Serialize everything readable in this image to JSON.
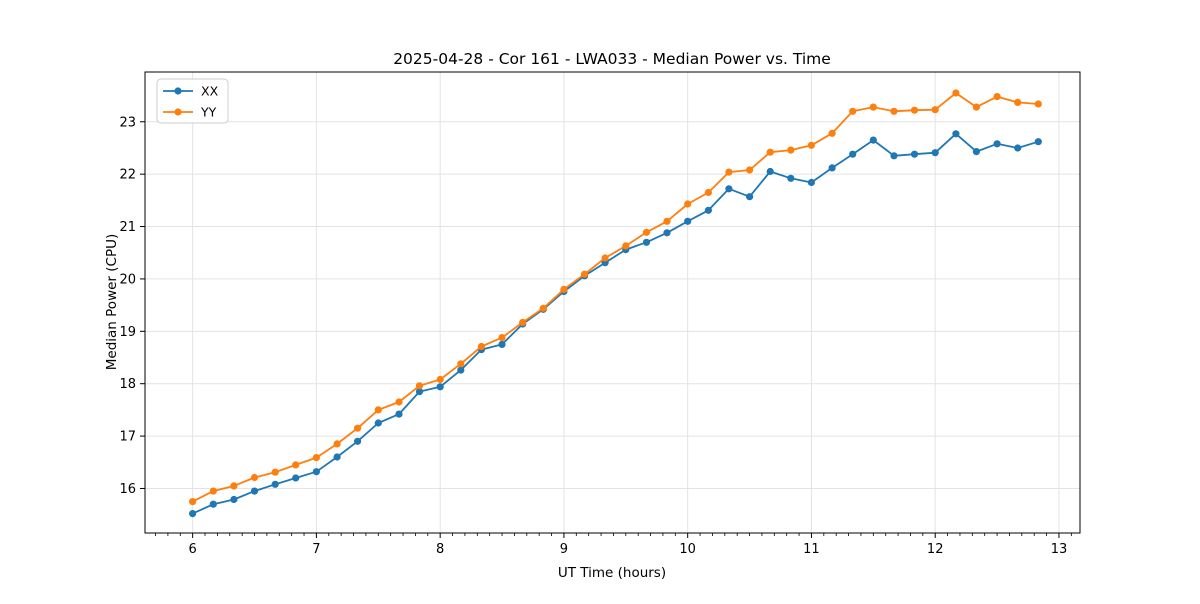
{
  "title": "2025-04-28 - Cor 161 - LWA033 - Median Power vs. Time",
  "chart_data": {
    "type": "line",
    "title": "2025-04-28 - Cor 161 - LWA033 - Median Power vs. Time",
    "xlabel": "UT Time (hours)",
    "ylabel": "Median Power (CPU)",
    "xlim": [
      5.615,
      13.17
    ],
    "ylim": [
      15.15,
      23.95
    ],
    "xticks": [
      6,
      7,
      8,
      9,
      10,
      11,
      12,
      13
    ],
    "yticks": [
      16,
      17,
      18,
      19,
      20,
      21,
      22,
      23
    ],
    "minor_xtick_step": 0.1,
    "grid": true,
    "grid_color": "#e3e3e3",
    "legend_position": "upper-left",
    "x": [
      6.0,
      6.167,
      6.333,
      6.5,
      6.667,
      6.833,
      7.0,
      7.167,
      7.333,
      7.5,
      7.667,
      7.833,
      8.0,
      8.167,
      8.333,
      8.5,
      8.667,
      8.833,
      9.0,
      9.167,
      9.333,
      9.5,
      9.667,
      9.833,
      10.0,
      10.167,
      10.333,
      10.5,
      10.667,
      10.833,
      11.0,
      11.167,
      11.333,
      11.5,
      11.667,
      11.833,
      12.0,
      12.167,
      12.333,
      12.5,
      12.667,
      12.833
    ],
    "series": [
      {
        "name": "XX",
        "color": "#1f77b4",
        "values": [
          15.52,
          15.7,
          15.79,
          15.95,
          16.08,
          16.2,
          16.32,
          16.6,
          16.9,
          17.25,
          17.42,
          17.85,
          17.94,
          18.26,
          18.65,
          18.75,
          19.14,
          19.42,
          19.76,
          20.06,
          20.31,
          20.56,
          20.7,
          20.88,
          21.1,
          21.31,
          21.72,
          21.57,
          22.05,
          21.92,
          21.84,
          22.12,
          22.38,
          22.65,
          22.35,
          22.38,
          22.41,
          22.77,
          22.43,
          22.58,
          22.5,
          22.62
        ]
      },
      {
        "name": "YY",
        "color": "#ff7f0e",
        "values": [
          15.75,
          15.95,
          16.05,
          16.21,
          16.31,
          16.45,
          16.59,
          16.85,
          17.15,
          17.5,
          17.65,
          17.96,
          18.08,
          18.38,
          18.71,
          18.88,
          19.17,
          19.44,
          19.8,
          20.09,
          20.4,
          20.63,
          20.89,
          21.1,
          21.43,
          21.65,
          22.04,
          22.08,
          22.42,
          22.46,
          22.55,
          22.78,
          23.2,
          23.28,
          23.2,
          23.22,
          23.23,
          23.55,
          23.28,
          23.48,
          23.37,
          23.34
        ]
      }
    ]
  }
}
